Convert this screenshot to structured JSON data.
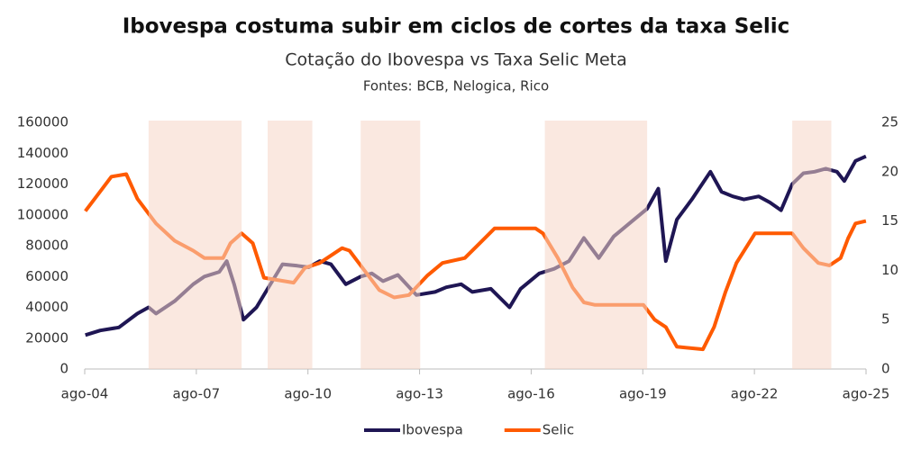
{
  "chart_data": {
    "type": "line",
    "title": "Ibovespa costuma subir em ciclos de cortes da taxa Selic",
    "subtitle": "Cotação do Ibovespa vs Taxa Selic Meta",
    "source": "Fontes: BCB, Nelogica, Rico",
    "xlim": [
      2004.583,
      2025.583
    ],
    "xticks": [
      {
        "value": 2004.583,
        "label": "ago-04"
      },
      {
        "value": 2007.583,
        "label": "ago-07"
      },
      {
        "value": 2010.583,
        "label": "ago-10"
      },
      {
        "value": 2013.583,
        "label": "ago-13"
      },
      {
        "value": 2016.583,
        "label": "ago-16"
      },
      {
        "value": 2019.583,
        "label": "ago-19"
      },
      {
        "value": 2022.583,
        "label": "ago-22"
      },
      {
        "value": 2025.583,
        "label": "ago-25"
      }
    ],
    "ylim": [
      0,
      160000
    ],
    "yticks": [
      0,
      20000,
      40000,
      60000,
      80000,
      100000,
      120000,
      140000,
      160000
    ],
    "y2lim": [
      0,
      25
    ],
    "y2ticks": [
      0,
      5,
      10,
      15,
      20,
      25
    ],
    "shaded_periods": [
      [
        2006.3,
        2008.8
      ],
      [
        2009.5,
        2010.7
      ],
      [
        2012.0,
        2013.6
      ],
      [
        2016.95,
        2019.7
      ],
      [
        2023.6,
        2024.65
      ]
    ],
    "shade_color": "#f6d5c6",
    "series": [
      {
        "name": "Ibovespa",
        "color": "#1f1654",
        "x": [
          2004.6,
          2005.0,
          2005.5,
          2006.0,
          2006.3,
          2006.5,
          2007.0,
          2007.5,
          2007.8,
          2008.2,
          2008.4,
          2008.6,
          2008.85,
          2009.2,
          2009.5,
          2009.9,
          2010.3,
          2010.6,
          2010.9,
          2011.2,
          2011.6,
          2012.0,
          2012.3,
          2012.6,
          2013.0,
          2013.5,
          2014.0,
          2014.3,
          2014.7,
          2015.0,
          2015.5,
          2016.0,
          2016.3,
          2016.8,
          2017.2,
          2017.6,
          2018.0,
          2018.4,
          2018.8,
          2019.3,
          2019.7,
          2020.0,
          2020.2,
          2020.5,
          2020.9,
          2021.4,
          2021.7,
          2022.0,
          2022.3,
          2022.7,
          2023.0,
          2023.3,
          2023.6,
          2023.9,
          2024.2,
          2024.5,
          2024.8,
          2025.0,
          2025.3,
          2025.58
        ],
        "values": [
          22000,
          25000,
          27000,
          36000,
          40000,
          36000,
          44000,
          55000,
          60000,
          63000,
          70000,
          55000,
          32000,
          40000,
          52000,
          68000,
          67000,
          66000,
          70000,
          68000,
          55000,
          60000,
          62000,
          57000,
          61000,
          48000,
          50000,
          53000,
          55000,
          50000,
          52000,
          40000,
          52000,
          62000,
          65000,
          70000,
          85000,
          72000,
          86000,
          96000,
          104000,
          117000,
          70000,
          97000,
          110000,
          128000,
          115000,
          112000,
          110000,
          112000,
          108000,
          103000,
          120000,
          127000,
          128000,
          130000,
          128000,
          122000,
          135000,
          138000
        ]
      },
      {
        "name": "Selic",
        "color": "#ff5a00",
        "axis": "y2",
        "x": [
          2004.6,
          2004.9,
          2005.3,
          2005.7,
          2006.0,
          2006.5,
          2007.0,
          2007.5,
          2007.8,
          2008.3,
          2008.5,
          2008.8,
          2009.1,
          2009.4,
          2010.2,
          2010.5,
          2010.9,
          2011.5,
          2011.7,
          2012.0,
          2012.5,
          2012.9,
          2013.3,
          2013.8,
          2014.2,
          2014.8,
          2015.2,
          2015.6,
          2016.7,
          2016.9,
          2017.3,
          2017.7,
          2018.0,
          2018.3,
          2019.6,
          2019.9,
          2020.2,
          2020.5,
          2021.2,
          2021.5,
          2021.8,
          2022.1,
          2022.6,
          2023.6,
          2023.9,
          2024.3,
          2024.6,
          2024.9,
          2025.1,
          2025.3,
          2025.58
        ],
        "values": [
          16,
          17.5,
          19.5,
          19.75,
          17.25,
          14.75,
          13,
          12,
          11.25,
          11.25,
          12.75,
          13.75,
          12.75,
          9.25,
          8.75,
          10.25,
          10.75,
          12.25,
          12,
          10.5,
          8,
          7.25,
          7.5,
          9.5,
          10.75,
          11.25,
          12.75,
          14.25,
          14.25,
          13.75,
          11.25,
          8.25,
          6.75,
          6.5,
          6.5,
          5,
          4.25,
          2.25,
          2,
          4.25,
          7.75,
          10.75,
          13.75,
          13.75,
          12.25,
          10.75,
          10.5,
          11.25,
          13.25,
          14.75,
          15
        ]
      }
    ]
  }
}
